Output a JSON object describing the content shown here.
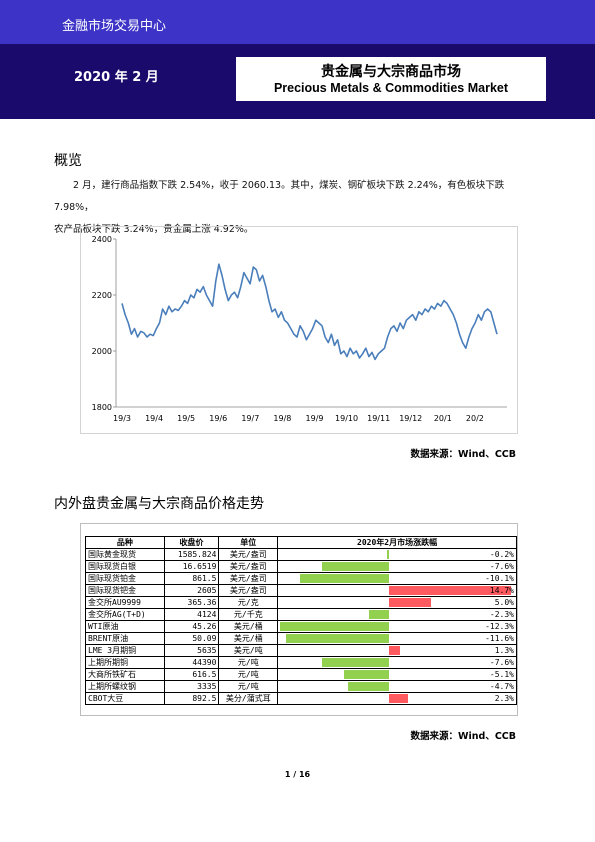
{
  "header": {
    "org": "金融市场交易中心",
    "date": "2020 年 2 月",
    "title_zh": "贵金属与大宗商品市场",
    "title_en": "Precious Metals & Commodities Market"
  },
  "overview": {
    "heading": "概览",
    "para1": "2 月，建行商品指数下跌 2.54%，收于 2060.13。其中，煤炭、钢矿板块下跌 2.24%，有色板块下跌 7.98%，",
    "para2": "农产品板块下跌 3.24%，贵金属上涨 4.92%。"
  },
  "chart_data": {
    "type": "line",
    "title": "",
    "xlabel": "",
    "ylabel": "",
    "ylim": [
      1800,
      2400
    ],
    "yticks": [
      "2400",
      "2200",
      "2000",
      "1800"
    ],
    "xticks": [
      "19/3",
      "19/4",
      "19/5",
      "19/6",
      "19/7",
      "19/8",
      "19/9",
      "19/10",
      "19/11",
      "19/12",
      "20/1",
      "20/2"
    ],
    "color": "#4a7ebb",
    "series": [
      {
        "values": [
          2170,
          2130,
          2100,
          2060,
          2080,
          2050,
          2070,
          2065,
          2050,
          2060,
          2055,
          2080,
          2100,
          2150,
          2130,
          2160,
          2140,
          2150,
          2145,
          2160,
          2180,
          2170,
          2200,
          2190,
          2220,
          2210,
          2230,
          2200,
          2180,
          2160,
          2250,
          2310,
          2270,
          2220,
          2180,
          2200,
          2210,
          2190,
          2230,
          2280,
          2260,
          2240,
          2300,
          2290,
          2250,
          2270,
          2230,
          2180,
          2140,
          2150,
          2120,
          2140,
          2110,
          2100,
          2080,
          2060,
          2050,
          2090,
          2070,
          2040,
          2060,
          2080,
          2110,
          2100,
          2090,
          2050,
          2030,
          2060,
          2020,
          2040,
          1990,
          2000,
          1980,
          2010,
          1990,
          2000,
          1975,
          1990,
          2010,
          1980,
          1995,
          1970,
          1990,
          2000,
          2010,
          2050,
          2080,
          2090,
          2070,
          2100,
          2080,
          2110,
          2120,
          2130,
          2110,
          2140,
          2130,
          2150,
          2140,
          2160,
          2150,
          2170,
          2160,
          2180,
          2170,
          2150,
          2130,
          2100,
          2060,
          2030,
          2010,
          2050,
          2080,
          2100,
          2130,
          2110,
          2140,
          2150,
          2140,
          2100,
          2060
        ]
      }
    ]
  },
  "source1": "数据来源：Wind、CCB",
  "prices": {
    "heading": "内外盘贵金属与大宗商品价格走势",
    "headers": [
      "品种",
      "收盘价",
      "单位",
      "2020年2月市场涨跌幅"
    ],
    "bar_scale_max": 14.7,
    "pos_color": "#ff5a5f",
    "neg_color": "#92d050",
    "rows": [
      {
        "name": "国际黄金现货",
        "price": "1585.824",
        "unit": "美元/盎司",
        "change": -0.2,
        "label": "-0.2%"
      },
      {
        "name": "国际现货白银",
        "price": "16.6519",
        "unit": "美元/盎司",
        "change": -7.6,
        "label": "-7.6%"
      },
      {
        "name": "国际现货铂金",
        "price": "861.5",
        "unit": "美元/盎司",
        "change": -10.1,
        "label": "-10.1%"
      },
      {
        "name": "国际现货钯金",
        "price": "2605",
        "unit": "美元/盎司",
        "change": 14.7,
        "label": "14.7%"
      },
      {
        "name": "金交所AU9999",
        "price": "365.36",
        "unit": "元/克",
        "change": 5.0,
        "label": "5.0%"
      },
      {
        "name": "金交所AG(T+D)",
        "price": "4124",
        "unit": "元/千克",
        "change": -2.3,
        "label": "-2.3%"
      },
      {
        "name": "WTI原油",
        "price": "45.26",
        "unit": "美元/桶",
        "change": -12.3,
        "label": "-12.3%"
      },
      {
        "name": "BRENT原油",
        "price": "50.09",
        "unit": "美元/桶",
        "change": -11.6,
        "label": "-11.6%"
      },
      {
        "name": "LME 3月期铜",
        "price": "5635",
        "unit": "美元/吨",
        "change": 1.3,
        "label": "1.3%"
      },
      {
        "name": "上期所期铜",
        "price": "44390",
        "unit": "元/吨",
        "change": -7.6,
        "label": "-7.6%"
      },
      {
        "name": "大商所铁矿石",
        "price": "616.5",
        "unit": "元/吨",
        "change": -5.1,
        "label": "-5.1%"
      },
      {
        "name": "上期所螺纹钢",
        "price": "3335",
        "unit": "元/吨",
        "change": -4.7,
        "label": "-4.7%"
      },
      {
        "name": "CBOT大豆",
        "price": "892.5",
        "unit": "美分/蒲式耳",
        "change": 2.3,
        "label": "2.3%"
      }
    ]
  },
  "source2": "数据来源：Wind、CCB",
  "page_number": "1 / 16"
}
